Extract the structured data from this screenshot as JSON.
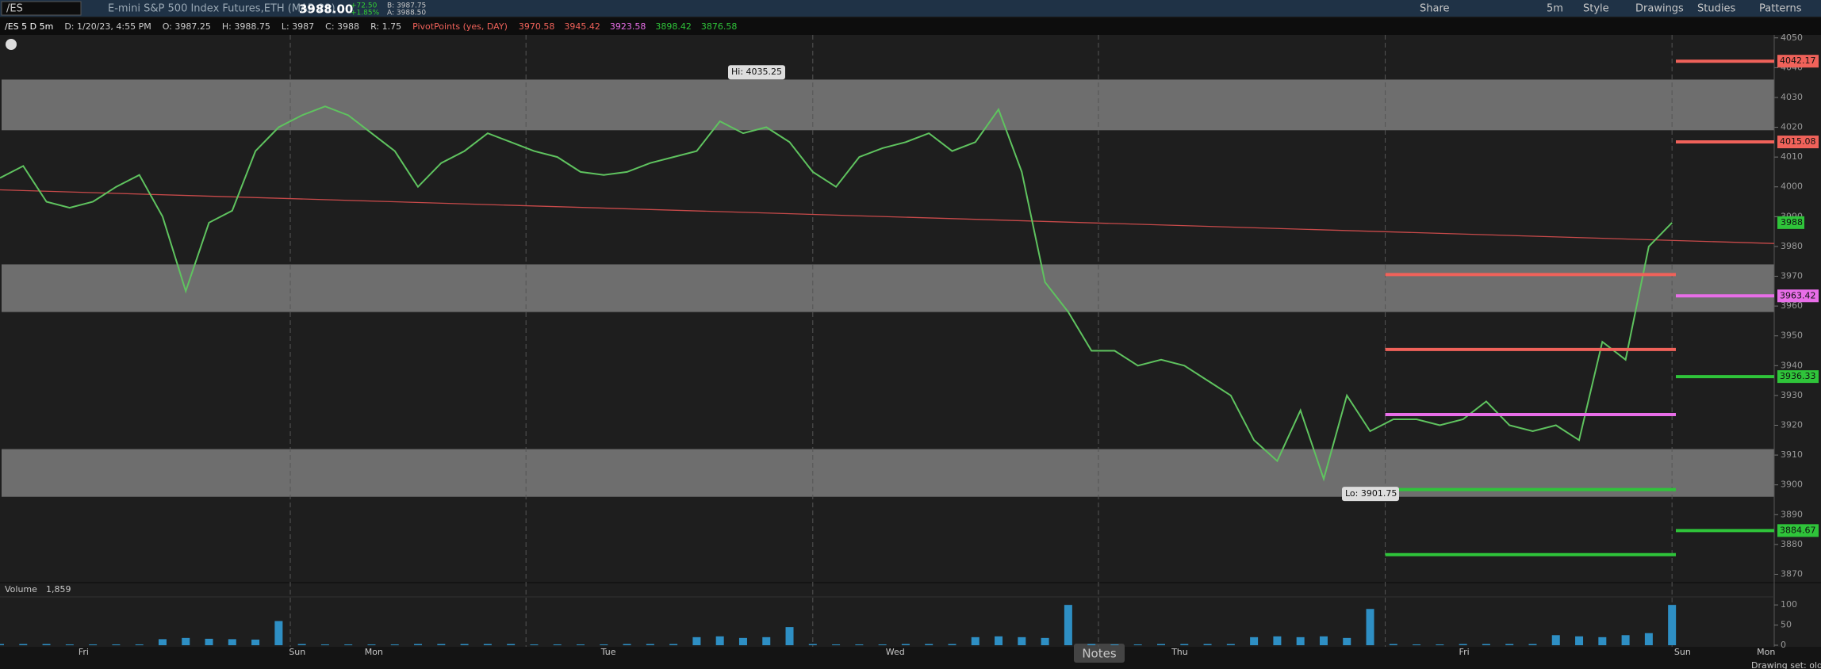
{
  "toolbar": {
    "symbol": "/ES",
    "description": "E-mini S&P 500 Index Futures,ETH (MAR 23)",
    "last": "3988.00",
    "change": "+72.50",
    "change_pct": "+1.85%",
    "bid": "B: 3987.75",
    "ask": "A: 3988.50",
    "buttons": [
      "Share",
      "5m",
      "Style",
      "Drawings",
      "Studies",
      "Patterns"
    ]
  },
  "info": {
    "chart_name": "/ES 5 D 5m",
    "date": "D: 1/20/23, 4:55 PM",
    "open": "O: 3987.25",
    "high": "H: 3988.75",
    "low": "L: 3987",
    "close": "C: 3988",
    "range": "R: 1.75",
    "study": "PivotPoints (yes, DAY)"
  },
  "chart_data": {
    "type": "line",
    "ylim": [
      3868,
      4051
    ],
    "yticks": [
      3870,
      3880,
      3890,
      3900,
      3910,
      3920,
      3930,
      3940,
      3950,
      3960,
      3970,
      3980,
      3990,
      4000,
      4010,
      4020,
      4030,
      4040,
      4050
    ],
    "xtick_labels": [
      "Fri",
      "Sun",
      "Mon",
      "Tue",
      "Wed",
      "Thu",
      "Fri",
      "Sun",
      "Mon"
    ],
    "series": [
      {
        "name": "/ES",
        "color": "#5fc35f",
        "values": [
          4003,
          4007,
          3995,
          3993,
          3995,
          4000,
          4004,
          3990,
          3965,
          3988,
          3992,
          4012,
          4020,
          4024,
          4027,
          4024,
          4018,
          4012,
          4000,
          4008,
          4012,
          4018,
          4015,
          4012,
          4010,
          4005,
          4004,
          4005,
          4008,
          4010,
          4012,
          4022,
          4018,
          4020,
          4015,
          4005,
          4000,
          4010,
          4013,
          4015,
          4018,
          4012,
          4015,
          4026,
          4005,
          3968,
          3958,
          3945,
          3945,
          3940,
          3942,
          3940,
          3935,
          3930,
          3915,
          3908,
          3925,
          3902,
          3930,
          3918,
          3922,
          3922,
          3920,
          3922,
          3928,
          3920,
          3918,
          3920,
          3915,
          3948,
          3942,
          3980,
          3988
        ]
      }
    ],
    "zones": [
      [
        4019,
        4036
      ],
      [
        3958,
        3974
      ],
      [
        3896,
        3912
      ]
    ],
    "trendline": [
      3999,
      3981
    ],
    "pivots": [
      {
        "value": 3970.58,
        "color": "#f0625a"
      },
      {
        "value": 3945.42,
        "color": "#f0625a"
      },
      {
        "value": 3923.58,
        "color": "#e86ee8"
      },
      {
        "value": 3898.42,
        "color": "#2fc43a"
      },
      {
        "value": 3876.58,
        "color": "#2fc43a"
      }
    ],
    "next_pivots": [
      {
        "value": 4042.17,
        "color": "#f0625a"
      },
      {
        "value": 4015.08,
        "color": "#f0625a"
      },
      {
        "value": 3963.42,
        "color": "#e86ee8"
      },
      {
        "value": 3936.33,
        "color": "#2fc43a"
      },
      {
        "value": 3884.67,
        "color": "#2fc43a"
      }
    ],
    "last_price": 3988,
    "annotations": [
      "Hi: 4035.25",
      "Lo: 3901.75"
    ],
    "volume": {
      "title": "Volume",
      "last": "1,859",
      "color": "#2e8fc4",
      "ylim": [
        0,
        118
      ],
      "yticks": [
        0,
        50,
        100
      ],
      "values": [
        3,
        3,
        3,
        2,
        2,
        2,
        2,
        15,
        18,
        16,
        15,
        14,
        60,
        3,
        2,
        2,
        2,
        2,
        3,
        3,
        3,
        3,
        3,
        2,
        2,
        2,
        2,
        3,
        3,
        3,
        20,
        22,
        18,
        20,
        45,
        3,
        2,
        2,
        2,
        3,
        3,
        3,
        20,
        22,
        20,
        18,
        100,
        3,
        2,
        2,
        3,
        3,
        3,
        3,
        20,
        22,
        20,
        22,
        18,
        90,
        3,
        2,
        2,
        3,
        3,
        3,
        3,
        25,
        22,
        20,
        25,
        30,
        100
      ]
    }
  },
  "footer": {
    "notes": "Notes",
    "drawing_set": "Drawing set: old"
  }
}
